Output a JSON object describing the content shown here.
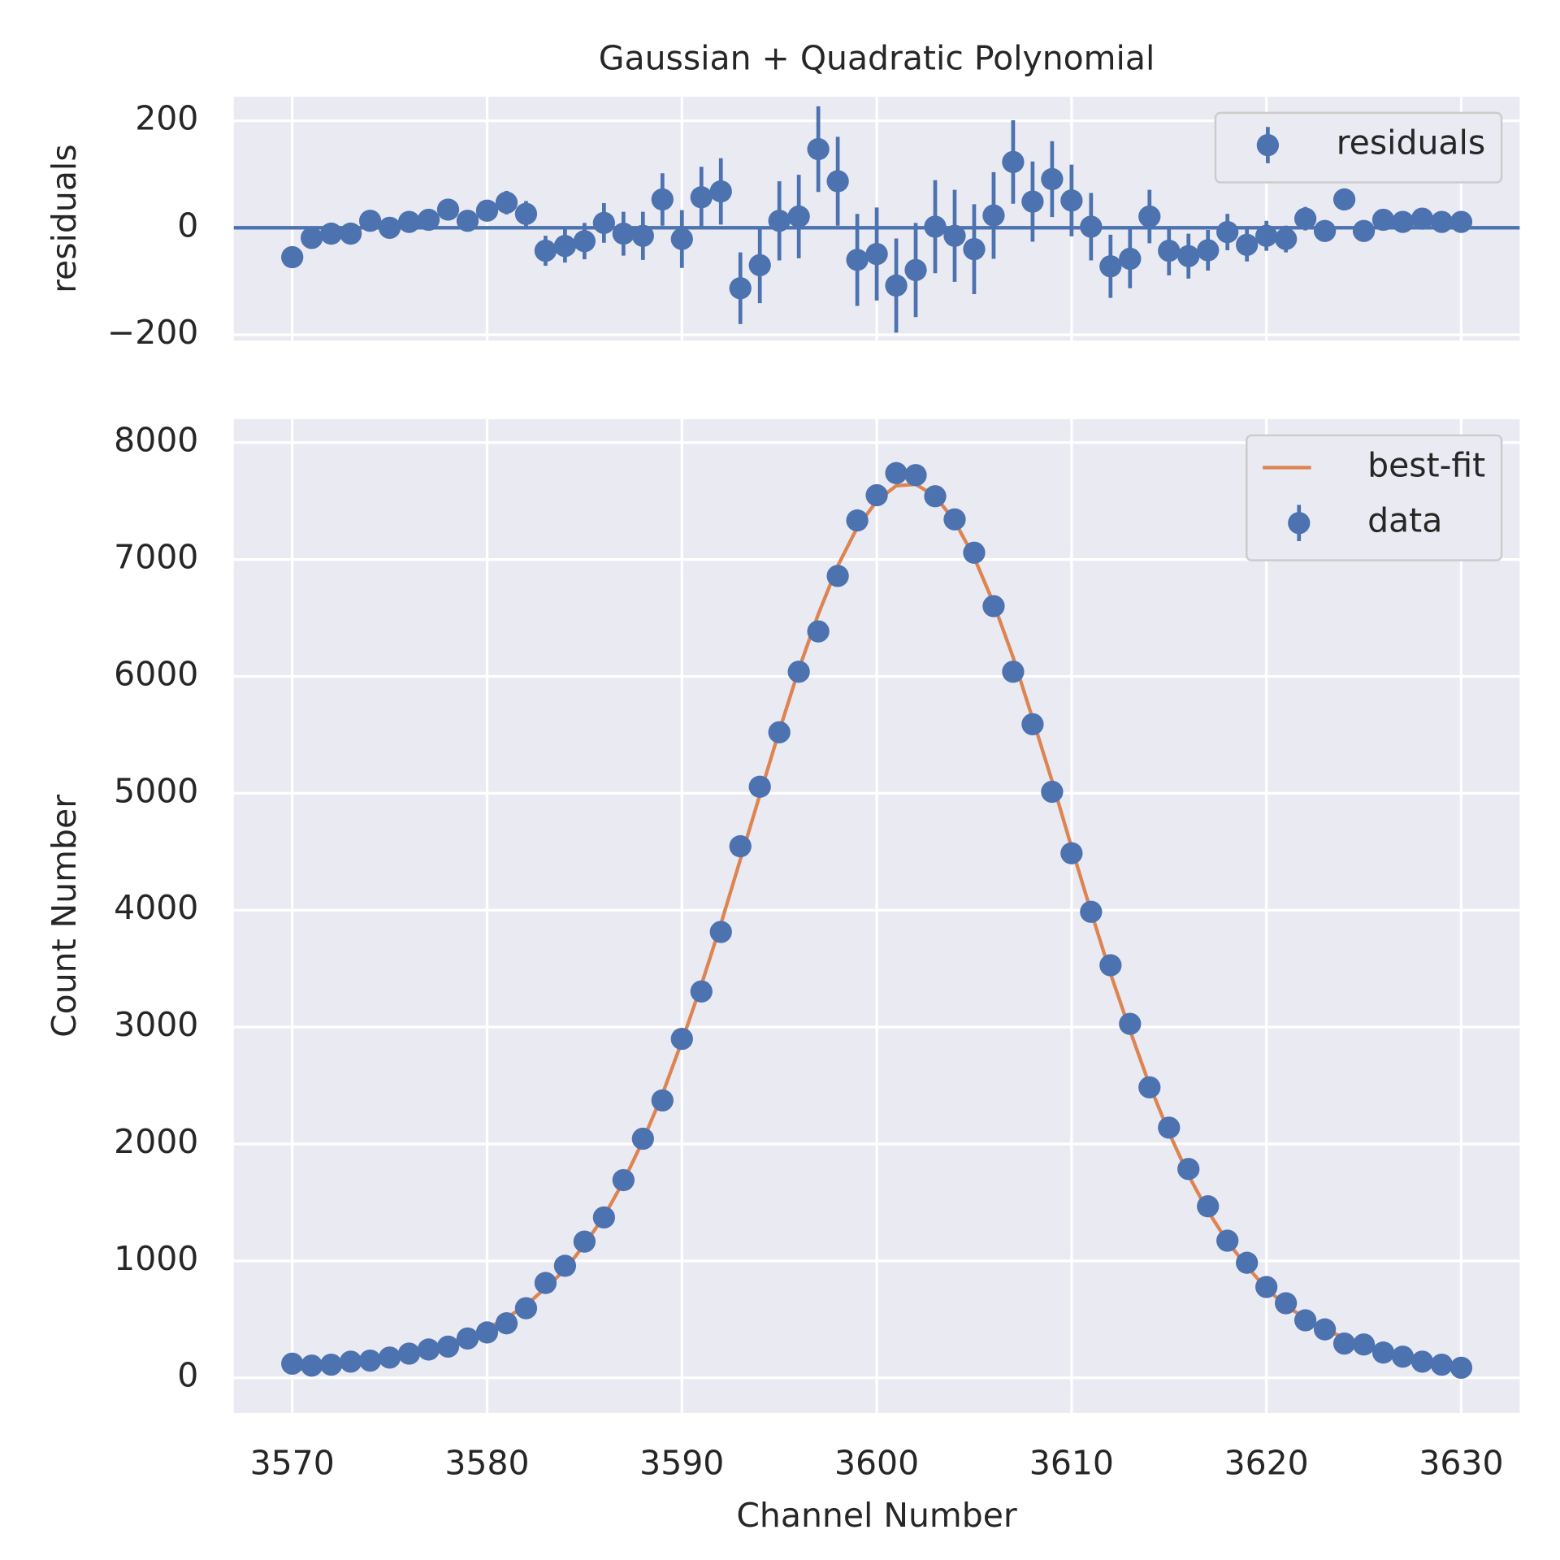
{
  "chart_data": [
    {
      "type": "errorbar",
      "title": "Gaussian + Quadratic Polynomial",
      "ylabel": "residuals",
      "x": [
        3570,
        3571,
        3572,
        3573,
        3574,
        3575,
        3576,
        3577,
        3578,
        3579,
        3580,
        3581,
        3582,
        3583,
        3584,
        3585,
        3586,
        3587,
        3588,
        3589,
        3590,
        3591,
        3592,
        3593,
        3594,
        3595,
        3596,
        3597,
        3598,
        3599,
        3600,
        3601,
        3602,
        3603,
        3604,
        3605,
        3606,
        3607,
        3608,
        3609,
        3610,
        3611,
        3612,
        3613,
        3614,
        3615,
        3616,
        3617,
        3618,
        3619,
        3620,
        3621,
        3622,
        3623,
        3624,
        3625,
        3626,
        3627,
        3628,
        3629,
        3630
      ],
      "series": [
        {
          "name": "residuals",
          "type": "errorbar",
          "color": "#4c72b0",
          "values": [
            -55,
            -19,
            -11,
            -11,
            13,
            0,
            11,
            15,
            34,
            13,
            32,
            47,
            26,
            -43,
            -34,
            -25,
            9,
            -11,
            -15,
            53,
            -21,
            57,
            68,
            -113,
            -70,
            13,
            21,
            147,
            87,
            -60,
            -49,
            -108,
            -79,
            2,
            -15,
            -40,
            23,
            123,
            49,
            91,
            51,
            2,
            -72,
            -58,
            21,
            -43,
            -53,
            -42,
            -8,
            -32,
            -15,
            -21,
            17,
            -6,
            53,
            -6,
            15,
            11,
            17,
            11,
            11
          ],
          "errors": [
            11,
            10,
            11,
            12,
            12,
            13,
            14,
            16,
            16,
            18,
            20,
            22,
            24,
            28,
            31,
            34,
            37,
            41,
            45,
            49,
            54,
            57,
            62,
            67,
            71,
            74,
            78,
            80,
            83,
            86,
            87,
            88,
            88,
            87,
            86,
            84,
            81,
            78,
            75,
            71,
            67,
            63,
            59,
            55,
            50,
            46,
            42,
            38,
            34,
            31,
            28,
            25,
            22,
            20,
            17,
            17,
            15,
            13,
            12,
            11,
            9
          ]
        }
      ],
      "hline": 0,
      "xlim": [
        3567,
        3633
      ],
      "xticks": [
        3570,
        3580,
        3590,
        3600,
        3610,
        3620,
        3630
      ],
      "ylim": [
        -211,
        245
      ],
      "yticks": [
        {
          "value": -200,
          "label": "−200"
        },
        0,
        200
      ],
      "grid": true,
      "legend": "upper right"
    },
    {
      "type": "errorbar",
      "xlabel": "Channel Number",
      "ylabel": "Count Number",
      "x": [
        3570,
        3571,
        3572,
        3573,
        3574,
        3575,
        3576,
        3577,
        3578,
        3579,
        3580,
        3581,
        3582,
        3583,
        3584,
        3585,
        3586,
        3587,
        3588,
        3589,
        3590,
        3591,
        3592,
        3593,
        3594,
        3595,
        3596,
        3597,
        3598,
        3599,
        3600,
        3601,
        3602,
        3603,
        3604,
        3605,
        3606,
        3607,
        3608,
        3609,
        3610,
        3611,
        3612,
        3613,
        3614,
        3615,
        3616,
        3617,
        3618,
        3619,
        3620,
        3621,
        3622,
        3623,
        3624,
        3625,
        3626,
        3627,
        3628,
        3629,
        3630
      ],
      "series": [
        {
          "name": "best-fit",
          "type": "line",
          "color": "#dd8452",
          "values": [
            66,
            85,
            101,
            127,
            160,
            173,
            218,
            257,
            301,
            349,
            420,
            513,
            621,
            768,
            924,
            1140,
            1381,
            1680,
            2030,
            2426,
            2878,
            3362,
            3882,
            4434,
            4986,
            5535,
            6061,
            6532,
            6946,
            7274,
            7501,
            7631,
            7643,
            7543,
            7328,
            7018,
            6624,
            6163,
            5640,
            5104,
            4538,
            3988,
            3457,
            2970,
            2506,
            2097,
            1733,
            1425,
            1165,
            952,
            762,
            617,
            509,
            408,
            346,
            279,
            231,
            192,
            155,
            123,
            97
          ]
        },
        {
          "name": "data",
          "type": "errorbar",
          "color": "#4c72b0",
          "values": [
            121,
            104,
            112,
            138,
            147,
            173,
            207,
            242,
            267,
            336,
            388,
            466,
            595,
            811,
            958,
            1165,
            1372,
            1691,
            2045,
            2373,
            2899,
            3305,
            3814,
            4547,
            5056,
            5522,
            6040,
            6385,
            6859,
            7334,
            7550,
            7739,
            7722,
            7541,
            7343,
            7058,
            6601,
            6040,
            5591,
            5013,
            4487,
            3986,
            3529,
            3028,
            2485,
            2140,
            1786,
            1467,
            1173,
            984,
            777,
            638,
            492,
            414,
            293,
            285,
            216,
            181,
            138,
            112,
            86
          ],
          "errors": [
            11,
            10,
            11,
            12,
            12,
            13,
            14,
            16,
            16,
            18,
            20,
            22,
            24,
            28,
            31,
            34,
            37,
            41,
            45,
            49,
            54,
            57,
            62,
            67,
            71,
            74,
            78,
            80,
            83,
            86,
            87,
            88,
            88,
            87,
            86,
            84,
            81,
            78,
            75,
            71,
            67,
            63,
            59,
            55,
            50,
            46,
            42,
            38,
            34,
            31,
            28,
            25,
            22,
            20,
            17,
            17,
            15,
            13,
            12,
            11,
            9
          ]
        }
      ],
      "xlim": [
        3567,
        3633
      ],
      "xticks": [
        3570,
        3580,
        3590,
        3600,
        3610,
        3620,
        3630
      ],
      "ylim": [
        -300,
        8200
      ],
      "yticks": [
        0,
        1000,
        2000,
        3000,
        4000,
        5000,
        6000,
        7000,
        8000
      ],
      "grid": true,
      "legend": "upper right"
    }
  ]
}
